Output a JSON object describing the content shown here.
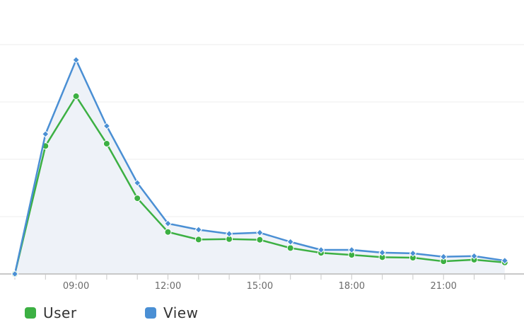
{
  "chart_data": {
    "type": "line",
    "x": [
      7,
      8,
      9,
      10,
      11,
      12,
      13,
      14,
      15,
      16,
      17,
      18,
      19,
      20,
      21,
      22,
      23
    ],
    "x_tick_labels": [
      "09:00",
      "12:00",
      "15:00",
      "18:00",
      "21:00"
    ],
    "x_tick_values": [
      9,
      12,
      15,
      18,
      21
    ],
    "ylim": [
      0,
      100
    ],
    "grid": true,
    "legend_position": "bottom-left",
    "series": [
      {
        "name": "User",
        "color": "#3cb043",
        "marker": "circle",
        "values": [
          0,
          55.8,
          77.5,
          56.8,
          33.0,
          18.3,
          15.0,
          15.2,
          14.9,
          11.3,
          9.2,
          8.3,
          7.3,
          7.1,
          5.5,
          6.2,
          5.0
        ]
      },
      {
        "name": "View",
        "color": "#4a8fd4",
        "marker": "diamond",
        "values": [
          0,
          61.0,
          93.3,
          64.5,
          39.7,
          22.0,
          19.3,
          17.5,
          18.0,
          14.0,
          10.5,
          10.5,
          9.3,
          9.0,
          7.5,
          7.8,
          5.8
        ]
      }
    ]
  },
  "legend": {
    "user_label": "User",
    "view_label": "View"
  }
}
